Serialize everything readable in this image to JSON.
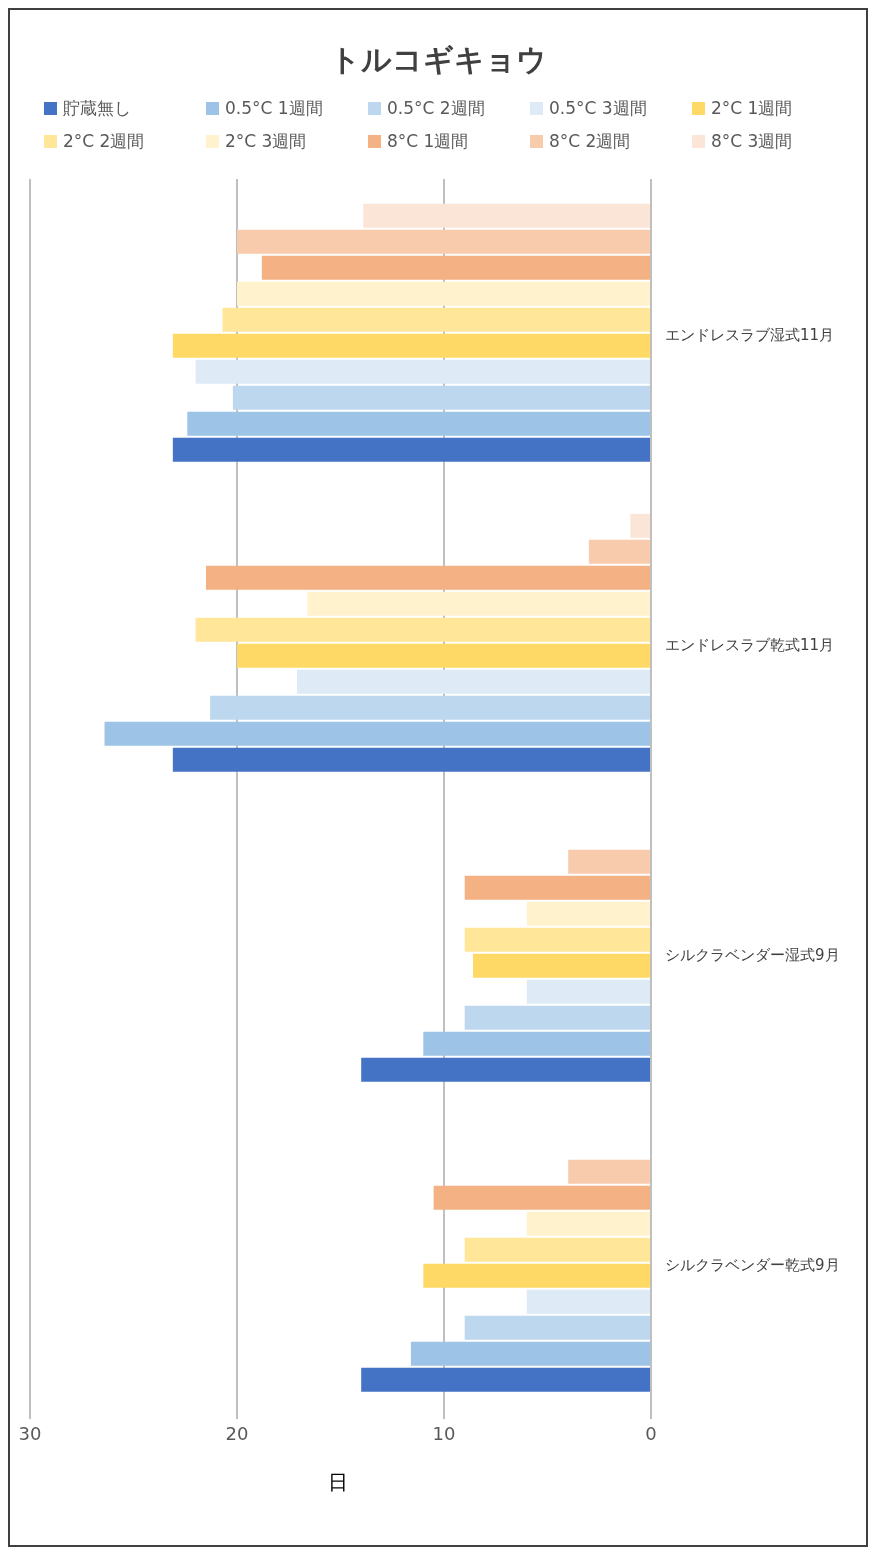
{
  "chart_data": {
    "type": "bar",
    "orientation": "horizontal",
    "title": "トルコギキョウ",
    "xlabel": "日",
    "categories": [
      "エンドレスラブ湿式11月",
      "エンドレスラブ乾式11月",
      "シルクラベンダー湿式9月",
      "シルクラベンダー乾式9月"
    ],
    "series": [
      {
        "name": "貯蔵無し",
        "color": "#4472c4",
        "values": [
          23.1,
          23.1,
          14,
          14
        ],
        "errors": [
          null,
          null,
          0,
          0
        ]
      },
      {
        "name": "0.5°C 1週間",
        "color": "#9dc3e6",
        "values": [
          22.4,
          26.4,
          11,
          11.6
        ]
      },
      {
        "name": "0.5°C 2週間",
        "color": "#bdd7ee",
        "values": [
          20.2,
          21.3,
          9,
          9
        ]
      },
      {
        "name": "0.5°C 3週間",
        "color": "#deebf7",
        "values": [
          22,
          17.1,
          6,
          6
        ]
      },
      {
        "name": "2°C 1週間",
        "color": "#ffd966",
        "values": [
          23.1,
          20,
          8.6,
          11
        ]
      },
      {
        "name": "2°C 2週間",
        "color": "#ffe699",
        "values": [
          20.7,
          22,
          9,
          9
        ]
      },
      {
        "name": "2°C 3週間",
        "color": "#fff2cc",
        "values": [
          20,
          16.6,
          6,
          6
        ]
      },
      {
        "name": "8°C 1週間",
        "color": "#f4b183",
        "values": [
          18.8,
          21.5,
          9,
          10.5
        ]
      },
      {
        "name": "8°C 2週間",
        "color": "#f8cbad",
        "values": [
          20,
          3,
          4,
          4
        ]
      },
      {
        "name": "8°C 3週間",
        "color": "#fbe5d6",
        "values": [
          13.9,
          1,
          null,
          null
        ]
      }
    ],
    "xlim": [
      30,
      0
    ],
    "xticks": [
      30,
      20,
      10,
      0
    ],
    "grid": "x",
    "legend": "top"
  }
}
